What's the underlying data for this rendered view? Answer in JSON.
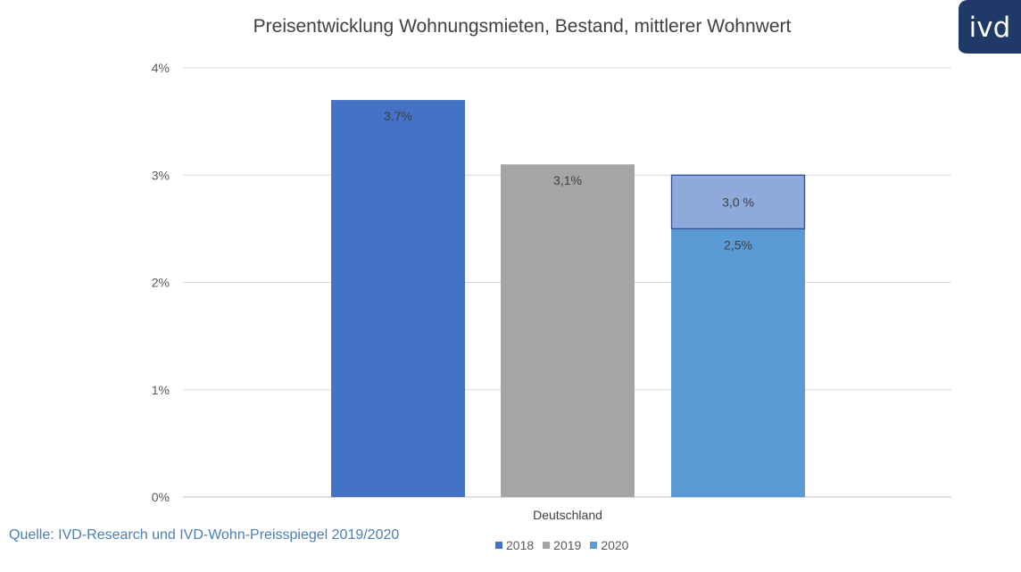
{
  "logo": {
    "text": "ivd",
    "color": "#1f3a68"
  },
  "source": "Quelle: IVD-Research und IVD-Wohn-Preisspiegel 2019/2020",
  "chart_data": {
    "type": "bar",
    "title": "Preisentwicklung Wohnungsmieten, Bestand, mittlerer Wohnwert",
    "xlabel": "",
    "ylabel": "",
    "categories": [
      "Deutschland"
    ],
    "ylim": [
      0,
      4
    ],
    "yticks": [
      {
        "value": 0,
        "label": "0%"
      },
      {
        "value": 1,
        "label": "1%"
      },
      {
        "value": 2,
        "label": "2%"
      },
      {
        "value": 3,
        "label": "3%"
      },
      {
        "value": 4,
        "label": "4%"
      }
    ],
    "series": [
      {
        "name": "2018",
        "values": [
          3.7
        ],
        "label": "3,7%",
        "color": "#4472c4"
      },
      {
        "name": "2019",
        "values": [
          3.1
        ],
        "label": "3,1%",
        "color": "#a5a5a5"
      },
      {
        "name": "2020",
        "values": [
          2.5
        ],
        "label": "2,5%",
        "color": "#5b9bd5",
        "extension": {
          "value": 3.0,
          "label": "3,0 %",
          "color": "#8eaadb",
          "border": "#2f4f8f"
        }
      }
    ],
    "grid": true,
    "legend_position": "bottom"
  }
}
